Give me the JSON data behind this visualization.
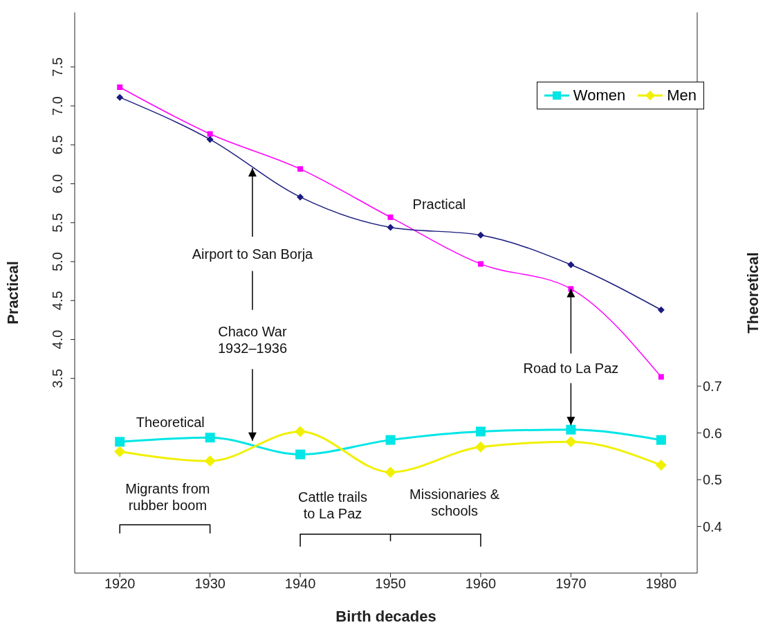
{
  "chart_data": {
    "type": "line",
    "xlabel": "Birth decades",
    "ylabel": "Practical",
    "y2label": "Theoretical",
    "x": [
      1920,
      1930,
      1940,
      1950,
      1960,
      1970,
      1980
    ],
    "xlim": [
      1915,
      1984
    ],
    "xticks": [
      1920,
      1930,
      1940,
      1950,
      1960,
      1970,
      1980
    ],
    "ylim": [
      1.0,
      8.2
    ],
    "yticks": [
      3.5,
      {
        "value": 4,
        "label": "4.0"
      },
      4.5,
      {
        "value": 5,
        "label": "5.0"
      },
      5.5,
      {
        "value": 6,
        "label": "6.0"
      },
      6.5,
      {
        "value": 7,
        "label": "7.0"
      },
      7.5
    ],
    "y2lim": [
      0.3,
      1.5
    ],
    "y2ticks": [
      0.4,
      0.5,
      0.6,
      0.7
    ],
    "series": [
      {
        "color": "#ff00ff",
        "marker": "square",
        "values": [
          7.24,
          6.64,
          6.19,
          5.57,
          4.97,
          4.65,
          3.52
        ]
      },
      {
        "color": "#1a1a80",
        "marker": "diamond",
        "values": [
          7.11,
          6.57,
          5.83,
          5.44,
          5.34,
          4.96,
          4.38
        ]
      },
      {
        "name": "Women",
        "color": "#00e5e5",
        "marker": "square",
        "axis": "y2",
        "values": [
          0.581,
          0.59,
          0.554,
          0.585,
          0.603,
          0.607,
          0.585
        ]
      },
      {
        "name": "Men",
        "color": "#f0f000",
        "marker": "diamond",
        "axis": "y2",
        "values": [
          0.56,
          0.54,
          0.603,
          0.516,
          0.57,
          0.581,
          0.531
        ]
      }
    ],
    "legend": "top right",
    "line_style": "solid",
    "annotations": [
      "Practical",
      {
        "text": "Airport to San Borja",
        "x": 1934.7,
        "y": 6.2
      },
      "Chaco War\n1932–1936",
      {
        "text": "Road to La Paz",
        "x": 1970,
        "y": 4.65
      },
      "Theoretical",
      "Migrants from\nrubber boom",
      "Cattle trails\nto La Paz",
      "Missionaries &\nschools"
    ]
  }
}
